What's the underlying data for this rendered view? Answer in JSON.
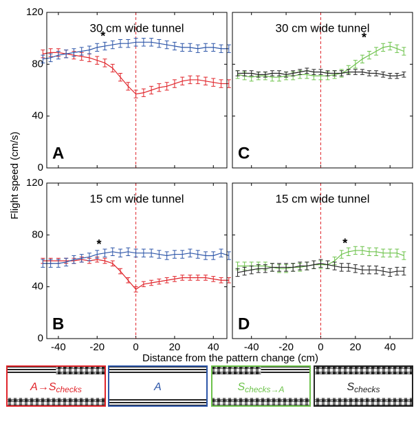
{
  "figure": {
    "ylabel": "Flight speed (cm/s)",
    "xlabel": "Distance from the pattern change (cm)"
  },
  "legend": [
    {
      "text": "A→S",
      "sub": "checks",
      "color": "#e0242a"
    },
    {
      "text": "A",
      "color": "#2c55a8"
    },
    {
      "text": "S",
      "sub": "checks→A",
      "color": "#6cc24a"
    },
    {
      "text": "S",
      "sub": "checks",
      "color": "#222222"
    }
  ],
  "chart_data": [
    {
      "type": "line",
      "title": "30 cm wide tunnel",
      "label": "A",
      "xlim": [
        -46,
        47
      ],
      "ylim": [
        0,
        120
      ],
      "xticks": [
        -40,
        -20,
        0,
        20,
        40
      ],
      "yticks": [
        0,
        40,
        80,
        120
      ],
      "show_xticklabels": false,
      "show_yticklabels": true,
      "vline": 0,
      "x": [
        -48,
        -44,
        -40,
        -36,
        -32,
        -28,
        -24,
        -20,
        -16,
        -12,
        -8,
        -4,
        0,
        4,
        8,
        12,
        16,
        20,
        24,
        28,
        32,
        36,
        40,
        44,
        48
      ],
      "series": [
        {
          "color": "#e0242a",
          "error": 3,
          "values": [
            88,
            89,
            89,
            88,
            87,
            86,
            85,
            83,
            81,
            77,
            70,
            63,
            57,
            58,
            60,
            62,
            63,
            65,
            67,
            68,
            68,
            67,
            66,
            65,
            65
          ]
        },
        {
          "color": "#2c55a8",
          "error": 3,
          "values": [
            84,
            85,
            87,
            88,
            89,
            90,
            91,
            93,
            94,
            95,
            96,
            96,
            97,
            97,
            97,
            96,
            95,
            94,
            93,
            93,
            92,
            93,
            93,
            92,
            92
          ]
        }
      ],
      "annotations": [
        {
          "text": "*",
          "x": -17,
          "y": 101
        }
      ]
    },
    {
      "type": "line",
      "title": "30 cm wide tunnel",
      "label": "C",
      "xlim": [
        -51,
        53
      ],
      "ylim": [
        0,
        120
      ],
      "xticks": [
        -40,
        -20,
        0,
        20,
        40
      ],
      "yticks": [
        0,
        40,
        80,
        120
      ],
      "show_xticklabels": false,
      "show_yticklabels": false,
      "vline": 0,
      "x": [
        -48,
        -44,
        -40,
        -36,
        -32,
        -28,
        -24,
        -20,
        -16,
        -12,
        -8,
        -4,
        0,
        4,
        8,
        12,
        16,
        20,
        24,
        28,
        32,
        36,
        40,
        44,
        48
      ],
      "series": [
        {
          "color": "#6cc24a",
          "error": 3,
          "values": [
            72,
            71,
            70,
            71,
            71,
            70,
            70,
            71,
            71,
            72,
            72,
            71,
            71,
            71,
            72,
            73,
            76,
            80,
            84,
            87,
            90,
            93,
            94,
            92,
            90
          ]
        },
        {
          "color": "#222222",
          "error": 2,
          "values": [
            73,
            73,
            73,
            72,
            72,
            73,
            73,
            72,
            73,
            74,
            75,
            74,
            74,
            73,
            73,
            73,
            74,
            74,
            74,
            73,
            73,
            72,
            71,
            71,
            72
          ]
        }
      ],
      "annotations": [
        {
          "text": "*",
          "x": 25,
          "y": 100
        }
      ]
    },
    {
      "type": "line",
      "title": "15 cm wide tunnel",
      "label": "B",
      "xlim": [
        -46,
        47
      ],
      "ylim": [
        0,
        120
      ],
      "xticks": [
        -40,
        -20,
        0,
        20,
        40
      ],
      "yticks": [
        0,
        40,
        80,
        120
      ],
      "show_xticklabels": true,
      "show_yticklabels": true,
      "vline": 0,
      "x": [
        -48,
        -44,
        -40,
        -36,
        -32,
        -28,
        -24,
        -20,
        -16,
        -12,
        -8,
        -4,
        0,
        4,
        8,
        12,
        16,
        20,
        24,
        28,
        32,
        36,
        40,
        44,
        48
      ],
      "series": [
        {
          "color": "#e0242a",
          "error": 2,
          "values": [
            60,
            60,
            60,
            60,
            60,
            61,
            60,
            61,
            60,
            58,
            52,
            45,
            38,
            42,
            43,
            44,
            45,
            46,
            47,
            47,
            47,
            47,
            46,
            45,
            45
          ]
        },
        {
          "color": "#2c55a8",
          "error": 3,
          "values": [
            58,
            58,
            58,
            59,
            61,
            62,
            63,
            65,
            66,
            67,
            66,
            67,
            66,
            66,
            66,
            65,
            64,
            65,
            65,
            66,
            65,
            64,
            64,
            66,
            64
          ]
        }
      ],
      "annotations": [
        {
          "text": "*",
          "x": -19,
          "y": 72
        }
      ]
    },
    {
      "type": "line",
      "title": "15 cm wide tunnel",
      "label": "D",
      "xlim": [
        -51,
        53
      ],
      "ylim": [
        0,
        120
      ],
      "xticks": [
        -40,
        -20,
        0,
        20,
        40
      ],
      "yticks": [
        0,
        40,
        80,
        120
      ],
      "show_xticklabels": true,
      "show_yticklabels": false,
      "vline": 0,
      "x": [
        -48,
        -44,
        -40,
        -36,
        -32,
        -28,
        -24,
        -20,
        -16,
        -12,
        -8,
        -4,
        0,
        4,
        8,
        12,
        16,
        20,
        24,
        28,
        32,
        36,
        40,
        44,
        48
      ],
      "series": [
        {
          "color": "#6cc24a",
          "error": 3,
          "values": [
            56,
            56,
            56,
            56,
            56,
            55,
            54,
            54,
            55,
            55,
            56,
            57,
            57,
            57,
            60,
            65,
            67,
            68,
            68,
            67,
            67,
            66,
            66,
            66,
            64
          ]
        },
        {
          "color": "#222222",
          "error": 3,
          "values": [
            51,
            52,
            53,
            54,
            54,
            55,
            55,
            55,
            55,
            56,
            56,
            57,
            58,
            57,
            56,
            55,
            55,
            54,
            53,
            53,
            53,
            52,
            51,
            52,
            52
          ]
        }
      ],
      "annotations": [
        {
          "text": "*",
          "x": 14,
          "y": 73
        }
      ]
    }
  ]
}
